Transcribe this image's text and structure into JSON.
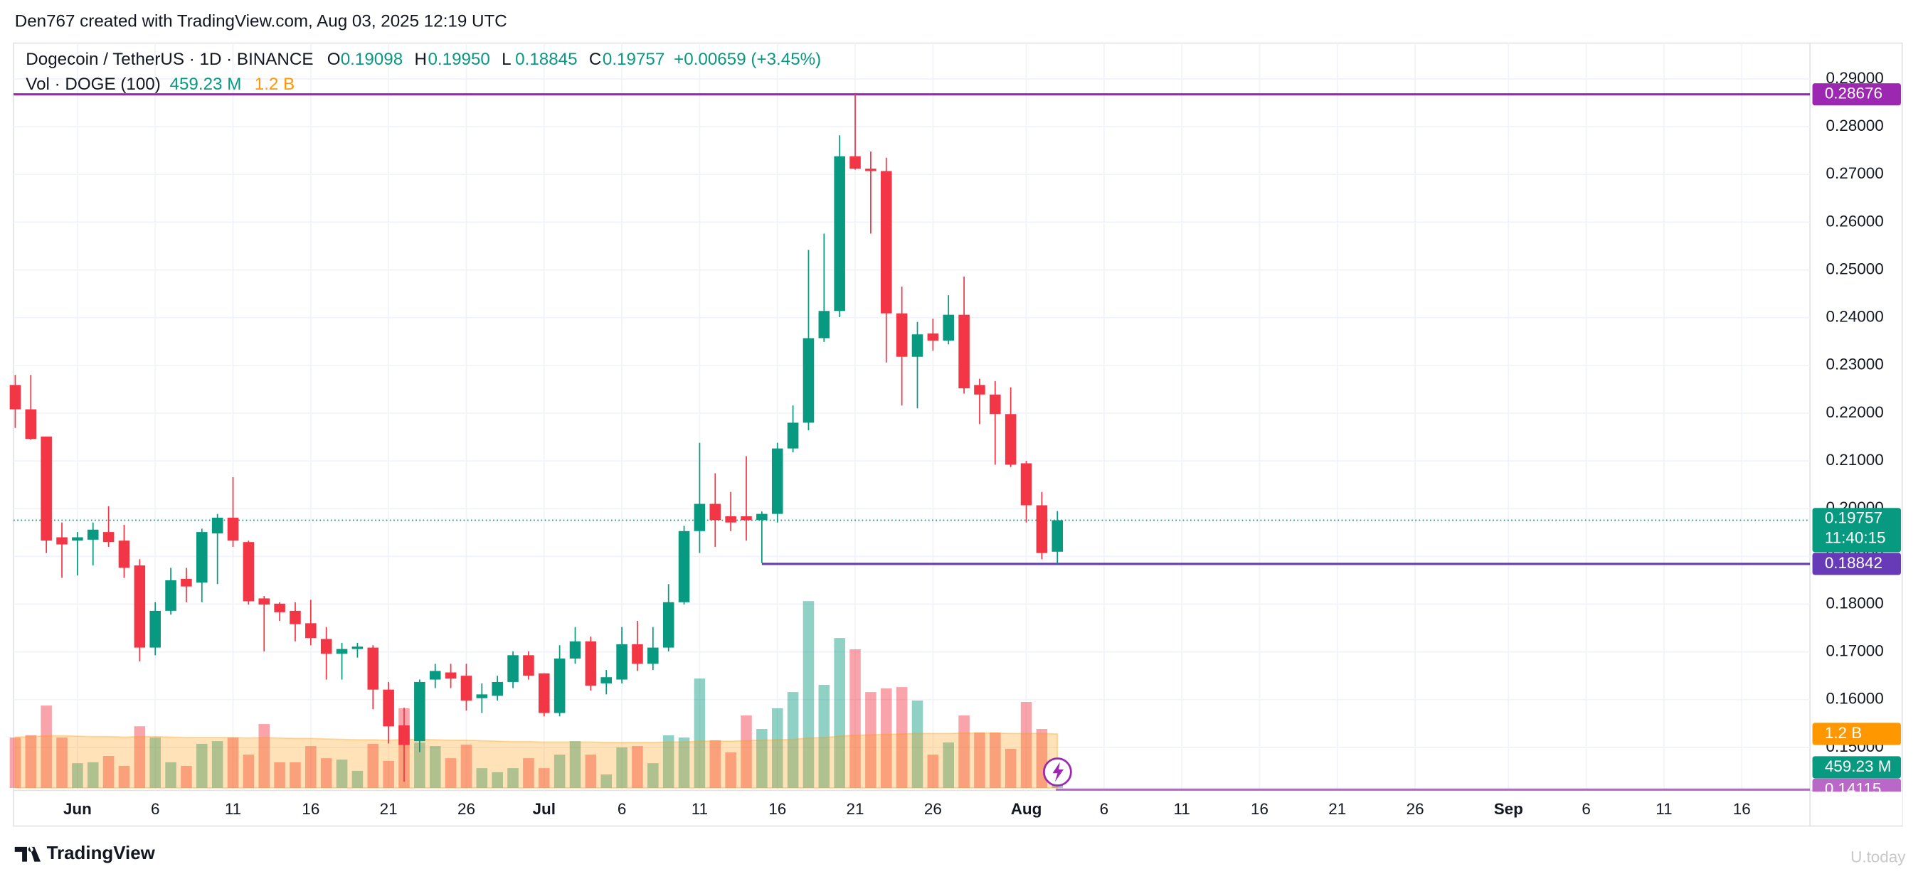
{
  "header": {
    "attribution": "Den767 created with TradingView.com, Aug 03, 2025 12:19 UTC"
  },
  "footer": {
    "brand": "TradingView",
    "watermark": "U.today"
  },
  "chart_data": {
    "type": "candlestick",
    "symbol": "Dogecoin / TetherUS · 1D · BINANCE",
    "legend": [
      {
        "key": "O",
        "value": "0.19098"
      },
      {
        "key": "H",
        "value": "0.19950"
      },
      {
        "key": "L",
        "value": "0.18845"
      },
      {
        "key": "C",
        "value": "0.19757"
      }
    ],
    "change": "+0.00659 (+3.45%)",
    "volume_legend": {
      "name": "Vol · DOGE (100)",
      "value": "459.23 M",
      "ma": "1.2 B"
    },
    "countdown": "11:40:15",
    "up_color": "#089981",
    "down_color": "#f23645",
    "volume_ma_color": "#ff9800",
    "categories": [
      null,
      null,
      null,
      null,
      "Jun",
      null,
      null,
      null,
      null,
      "6",
      null,
      null,
      null,
      null,
      "11",
      null,
      null,
      null,
      null,
      "16",
      null,
      null,
      null,
      null,
      "21",
      null,
      null,
      null,
      null,
      "26",
      null,
      null,
      null,
      null,
      "Jul",
      null,
      null,
      null,
      null,
      "6",
      null,
      null,
      null,
      null,
      "11",
      null,
      null,
      null,
      null,
      "16",
      null,
      null,
      null,
      null,
      "21",
      null,
      null,
      null,
      null,
      "26",
      null,
      null,
      null,
      null,
      null,
      "Aug",
      null,
      null,
      null,
      null,
      "6",
      null,
      null,
      null,
      null,
      "11",
      null,
      null,
      null,
      null,
      "16",
      null,
      null,
      null,
      null,
      "21",
      null,
      null,
      null,
      null,
      "26",
      null,
      null,
      null,
      null,
      null,
      "Sep",
      null,
      null,
      null,
      null,
      "6",
      null,
      null,
      null,
      null,
      "11",
      null,
      null,
      null,
      null,
      "16",
      null,
      null,
      null,
      null
    ],
    "open": [
      0.2259,
      0.2208,
      0.2151,
      0.194,
      0.1933,
      0.1935,
      0.1951,
      0.1933,
      0.1881,
      0.1709,
      0.1786,
      0.1853,
      0.1845,
      0.1948,
      0.1981,
      0.193,
      0.1812,
      0.1801,
      0.1786,
      0.176,
      0.1727,
      0.1696,
      0.1706,
      0.1709,
      0.1621,
      0.1546,
      0.1513,
      0.1642,
      0.1657,
      0.165,
      0.1603,
      0.1608,
      0.1637,
      0.1693,
      0.1655,
      0.1572,
      0.1686,
      0.1722,
      0.1634,
      0.1642,
      0.1716,
      0.1675,
      0.1709,
      0.1804,
      0.1953,
      0.201,
      0.1984,
      0.1984,
      0.1976,
      0.1989,
      0.2126,
      0.218,
      0.2357,
      0.2414,
      0.2738,
      0.2712,
      0.2707,
      0.2409,
      0.2318,
      0.2367,
      0.2352,
      0.2406,
      0.2259,
      0.2239,
      0.2198,
      0.2095,
      0.2007,
      0.19098,
      null,
      null,
      null,
      null,
      null,
      null,
      null,
      null,
      null,
      null,
      null,
      null,
      null,
      null,
      null,
      null,
      null,
      null,
      null,
      null,
      null,
      null,
      null,
      null,
      null,
      null,
      null,
      null,
      null,
      null,
      null,
      null,
      null,
      null,
      null,
      null,
      null,
      null,
      null,
      null,
      null,
      null,
      null,
      null,
      null,
      null,
      null,
      null
    ],
    "high": [
      0.228,
      0.228,
      0.2151,
      0.1971,
      0.1951,
      0.1971,
      0.2005,
      0.1966,
      0.1894,
      0.1804,
      0.1876,
      0.1876,
      0.1958,
      0.1989,
      0.2066,
      0.1933,
      0.1817,
      0.1804,
      0.1804,
      0.1809,
      0.1752,
      0.1719,
      0.1719,
      0.1714,
      0.1637,
      0.1583,
      0.1642,
      0.1675,
      0.1675,
      0.1675,
      0.1634,
      0.165,
      0.1701,
      0.1701,
      0.1655,
      0.1714,
      0.1752,
      0.1732,
      0.1662,
      0.1752,
      0.1765,
      0.1752,
      0.1842,
      0.1964,
      0.2138,
      0.2074,
      0.2035,
      0.211,
      0.1994,
      0.2138,
      0.2216,
      0.2542,
      0.2576,
      0.2782,
      0.2868,
      0.2748,
      0.2735,
      0.2465,
      0.2391,
      0.2398,
      0.2447,
      0.2486,
      0.2272,
      0.2267,
      0.2254,
      0.21,
      0.2035,
      0.1995,
      null,
      null,
      null,
      null,
      null,
      null,
      null,
      null,
      null,
      null,
      null,
      null,
      null,
      null,
      null,
      null,
      null,
      null,
      null,
      null,
      null,
      null,
      null,
      null,
      null,
      null,
      null,
      null,
      null,
      null,
      null,
      null,
      null,
      null,
      null,
      null,
      null,
      null,
      null,
      null,
      null,
      null,
      null,
      null,
      null,
      null,
      null,
      null
    ],
    "low": [
      0.2169,
      0.2144,
      0.1907,
      0.1855,
      0.186,
      0.1881,
      0.192,
      0.1855,
      0.168,
      0.1693,
      0.1778,
      0.1804,
      0.1804,
      0.1842,
      0.192,
      0.1799,
      0.1701,
      0.1765,
      0.1722,
      0.1714,
      0.1642,
      0.1642,
      0.1688,
      0.158,
      0.1508,
      0.1428,
      0.149,
      0.1624,
      0.1624,
      0.1577,
      0.1572,
      0.1598,
      0.1624,
      0.1642,
      0.1565,
      0.1565,
      0.1675,
      0.1619,
      0.1611,
      0.1634,
      0.166,
      0.1662,
      0.1701,
      0.1799,
      0.1907,
      0.192,
      0.1953,
      0.1933,
      0.1886,
      0.1971,
      0.2118,
      0.2164,
      0.2349,
      0.2401,
      0.271,
      0.2576,
      0.2306,
      0.2216,
      0.221,
      0.2331,
      0.2344,
      0.2241,
      0.2177,
      0.2092,
      0.2087,
      0.1971,
      0.1894,
      0.18845,
      null,
      null,
      null,
      null,
      null,
      null,
      null,
      null,
      null,
      null,
      null,
      null,
      null,
      null,
      null,
      null,
      null,
      null,
      null,
      null,
      null,
      null,
      null,
      null,
      null,
      null,
      null,
      null,
      null,
      null,
      null,
      null,
      null,
      null,
      null,
      null,
      null,
      null,
      null,
      null,
      null,
      null,
      null,
      null,
      null,
      null,
      null,
      null
    ],
    "close": [
      0.2208,
      0.2146,
      0.1933,
      0.1925,
      0.194,
      0.1956,
      0.193,
      0.1876,
      0.1709,
      0.1786,
      0.185,
      0.1837,
      0.1951,
      0.1981,
      0.1933,
      0.1806,
      0.1799,
      0.1783,
      0.1758,
      0.1729,
      0.1696,
      0.1706,
      0.1711,
      0.1621,
      0.1544,
      0.1505,
      0.1637,
      0.166,
      0.1644,
      0.1598,
      0.1611,
      0.1637,
      0.1693,
      0.165,
      0.1572,
      0.1686,
      0.1722,
      0.1629,
      0.1647,
      0.1716,
      0.1675,
      0.1709,
      0.1804,
      0.1953,
      0.201,
      0.1976,
      0.1971,
      0.1976,
      0.1989,
      0.2126,
      0.218,
      0.2357,
      0.2414,
      0.2738,
      0.2712,
      0.2707,
      0.2409,
      0.2318,
      0.2365,
      0.2352,
      0.2406,
      0.2252,
      0.2239,
      0.2198,
      0.2092,
      0.2007,
      0.1907,
      0.19757,
      null,
      null,
      null,
      null,
      null,
      null,
      null,
      null,
      null,
      null,
      null,
      null,
      null,
      null,
      null,
      null,
      null,
      null,
      null,
      null,
      null,
      null,
      null,
      null,
      null,
      null,
      null,
      null,
      null,
      null,
      null,
      null,
      null,
      null,
      null,
      null,
      null,
      null,
      null,
      null,
      null,
      null,
      null,
      null,
      null,
      null,
      null,
      null
    ],
    "volume": [
      1.12,
      1.17,
      1.83,
      1.12,
      0.55,
      0.57,
      0.71,
      0.49,
      1.37,
      1.12,
      0.57,
      0.49,
      0.98,
      1.04,
      1.12,
      0.74,
      1.42,
      0.57,
      0.57,
      0.93,
      0.66,
      0.63,
      0.38,
      0.98,
      0.6,
      1.77,
      1.01,
      0.93,
      0.66,
      0.96,
      0.44,
      0.35,
      0.44,
      0.66,
      0.44,
      0.74,
      1.04,
      0.74,
      0.3,
      0.9,
      0.93,
      0.55,
      1.17,
      1.12,
      2.43,
      1.06,
      0.79,
      1.61,
      1.31,
      1.77,
      2.13,
      4.15,
      2.29,
      3.33,
      3.08,
      2.13,
      2.21,
      2.24,
      1.94,
      0.74,
      1.01,
      1.61,
      1.23,
      1.23,
      0.87,
      1.91,
      1.31,
      0.45923,
      null,
      null,
      null,
      null,
      null,
      null,
      null,
      null,
      null,
      null,
      null,
      null,
      null,
      null,
      null,
      null,
      null,
      null,
      null,
      null,
      null,
      null,
      null,
      null,
      null,
      null,
      null,
      null,
      null,
      null,
      null,
      null,
      null,
      null,
      null,
      null,
      null,
      null,
      null,
      null,
      null,
      null,
      null,
      null,
      null,
      null,
      null,
      null
    ],
    "volume_ma": [
      1.13,
      1.14,
      1.16,
      1.16,
      1.15,
      1.14,
      1.14,
      1.13,
      1.14,
      1.14,
      1.13,
      1.12,
      1.12,
      1.12,
      1.12,
      1.11,
      1.12,
      1.11,
      1.1,
      1.1,
      1.09,
      1.08,
      1.07,
      1.07,
      1.06,
      1.08,
      1.08,
      1.07,
      1.06,
      1.06,
      1.05,
      1.04,
      1.03,
      1.03,
      1.02,
      1.02,
      1.02,
      1.02,
      1.01,
      1.01,
      1.01,
      1.01,
      1.02,
      1.02,
      1.04,
      1.04,
      1.04,
      1.05,
      1.06,
      1.07,
      1.08,
      1.11,
      1.12,
      1.15,
      1.17,
      1.18,
      1.19,
      1.2,
      1.21,
      1.21,
      1.21,
      1.22,
      1.22,
      1.22,
      1.21,
      1.21,
      1.21,
      1.2,
      null,
      null,
      null,
      null,
      null,
      null,
      null,
      null,
      null,
      null,
      null,
      null,
      null,
      null,
      null,
      null,
      null,
      null,
      null,
      null,
      null,
      null,
      null,
      null,
      null,
      null,
      null,
      null,
      null,
      null,
      null,
      null,
      null,
      null,
      null,
      null,
      null,
      null,
      null,
      null,
      null,
      null,
      null,
      null,
      null,
      null,
      null,
      null
    ],
    "ylim": [
      0.1415,
      0.2975
    ],
    "yticks": [
      {
        "value": 0.15,
        "label": "0.15000"
      },
      {
        "value": 0.16,
        "label": "0.16000"
      },
      {
        "value": 0.17,
        "label": "0.17000"
      },
      {
        "value": 0.18,
        "label": "0.18000"
      },
      {
        "value": 0.19,
        "label": "0.19000"
      },
      {
        "value": 0.2,
        "label": "0.20000"
      },
      {
        "value": 0.21,
        "label": "0.21000"
      },
      {
        "value": 0.22,
        "label": "0.22000"
      },
      {
        "value": 0.23,
        "label": "0.23000"
      },
      {
        "value": 0.24,
        "label": "0.24000"
      },
      {
        "value": 0.25,
        "label": "0.25000"
      },
      {
        "value": 0.26,
        "label": "0.26000"
      },
      {
        "value": 0.27,
        "label": "0.27000"
      },
      {
        "value": 0.28,
        "label": "0.28000"
      },
      {
        "value": 0.29,
        "label": "0.29000"
      }
    ],
    "y2lim": [
      0,
      16.54
    ],
    "grid": true,
    "levels": [
      {
        "value": 0.28676,
        "color": "#9c27b0"
      },
      {
        "value": 0.18842,
        "color": "#673ab7"
      },
      {
        "value": 0.14115,
        "color": "#ba68c8"
      }
    ]
  }
}
